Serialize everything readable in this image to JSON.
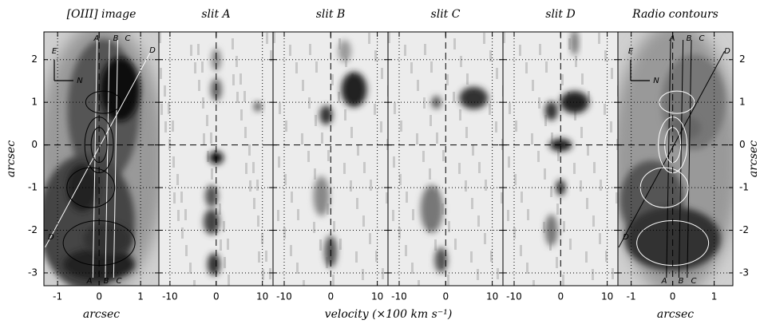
{
  "chart_data": [
    {
      "type": "image",
      "title": "[OIII] image",
      "xlabel": "arcsec",
      "ylabel": "arcsec",
      "xlim": [
        -1.33,
        1.44
      ],
      "xticks": [
        -1,
        0,
        1
      ],
      "ylim": [
        -3.3,
        2.65
      ],
      "yticks": [
        -3,
        -2,
        -1,
        0,
        1,
        2
      ],
      "annotations": [
        "A",
        "B",
        "C",
        "D",
        "A",
        "B",
        "C",
        "D",
        "E",
        "N"
      ]
    },
    {
      "type": "image",
      "title": "slit A",
      "xlabel": "velocity (×100 km s⁻¹)",
      "xlim": [
        -12.4,
        12.3
      ],
      "xticks": [
        -10,
        0,
        10
      ],
      "ylim": [
        -3.3,
        2.65
      ],
      "yticks": [
        -3,
        -2,
        -1,
        0,
        1,
        2
      ]
    },
    {
      "type": "image",
      "title": "slit B",
      "xlim": [
        -12.4,
        12.3
      ],
      "xticks": [
        -10,
        0,
        10
      ],
      "ylim": [
        -3.3,
        2.65
      ],
      "yticks": [
        -3,
        -2,
        -1,
        0,
        1,
        2
      ]
    },
    {
      "type": "image",
      "title": "slit C",
      "xlim": [
        -12.4,
        12.3
      ],
      "xticks": [
        -10,
        0,
        10
      ],
      "ylim": [
        -3.3,
        2.65
      ],
      "yticks": [
        -3,
        -2,
        -1,
        0,
        1,
        2
      ]
    },
    {
      "type": "image",
      "title": "slit D",
      "xlim": [
        -12.4,
        12.3
      ],
      "xticks": [
        -10,
        0,
        10
      ],
      "ylim": [
        -3.3,
        2.65
      ],
      "yticks": [
        -3,
        -2,
        -1,
        0,
        1,
        2
      ]
    },
    {
      "type": "image",
      "title": "Radio contours",
      "xlabel": "arcsec",
      "ylabel": "arcsec",
      "xlim": [
        -1.32,
        1.45
      ],
      "xticks": [
        -1,
        0,
        1
      ],
      "ylim": [
        -3.3,
        2.65
      ],
      "yticks": [
        -3,
        -2,
        -1,
        0,
        1,
        2
      ],
      "annotations": [
        "A",
        "B",
        "C",
        "D",
        "A",
        "B",
        "C",
        "D",
        "E",
        "N"
      ]
    }
  ]
}
